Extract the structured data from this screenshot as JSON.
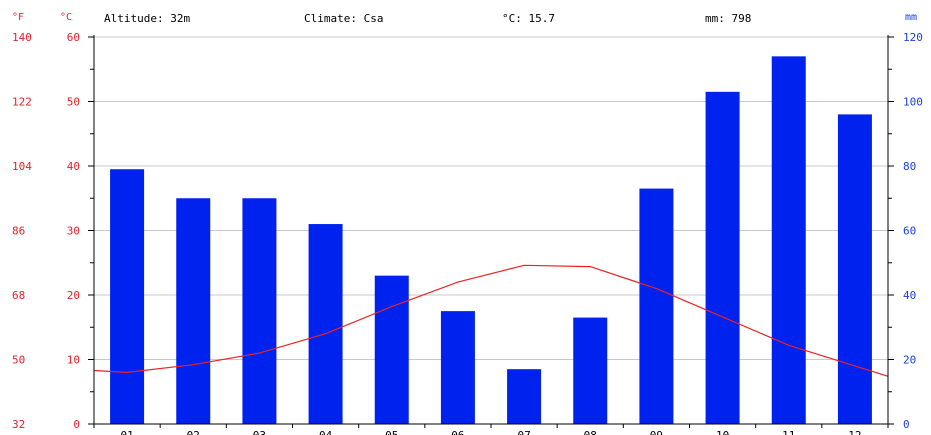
{
  "header": {
    "altitude": "Altitude: 32m",
    "climate": "Climate: Csa",
    "temp_avg": "°C: 15.7",
    "precip_total": "mm: 798"
  },
  "axes": {
    "f_unit": "°F",
    "c_unit": "°C",
    "mm_unit": "mm",
    "f_ticks": [
      "140",
      "122",
      "104",
      "86",
      "68",
      "50",
      "32"
    ],
    "c_ticks": [
      "60",
      "50",
      "40",
      "30",
      "20",
      "10",
      "0"
    ],
    "mm_ticks": [
      "120",
      "100",
      "80",
      "60",
      "40",
      "20",
      "0"
    ]
  },
  "colors": {
    "bars": "#0022ee",
    "temperature_line": "#ee2222",
    "left_axis_text": "#e8202a",
    "right_axis_text": "#1a3fe0",
    "grid": "#c8c8c8"
  },
  "chart_data": {
    "type": "bar",
    "title": "",
    "categories": [
      "01",
      "02",
      "03",
      "04",
      "05",
      "06",
      "07",
      "08",
      "09",
      "10",
      "11",
      "12"
    ],
    "series": [
      {
        "type": "bar",
        "axis": "right",
        "unit": "mm",
        "values": [
          79,
          70,
          70,
          62,
          46,
          35,
          17,
          33,
          73,
          103,
          114,
          96
        ]
      },
      {
        "type": "line",
        "axis": "left",
        "unit": "°C",
        "values": [
          8.0,
          9.2,
          11.0,
          14.0,
          18.2,
          22.0,
          24.6,
          24.4,
          21.0,
          16.6,
          12.2,
          9.0
        ]
      }
    ],
    "y_left_c": [
      0,
      60
    ],
    "y_left_f": [
      32,
      140
    ],
    "y_right_mm": [
      0,
      120
    ],
    "grid": true
  }
}
